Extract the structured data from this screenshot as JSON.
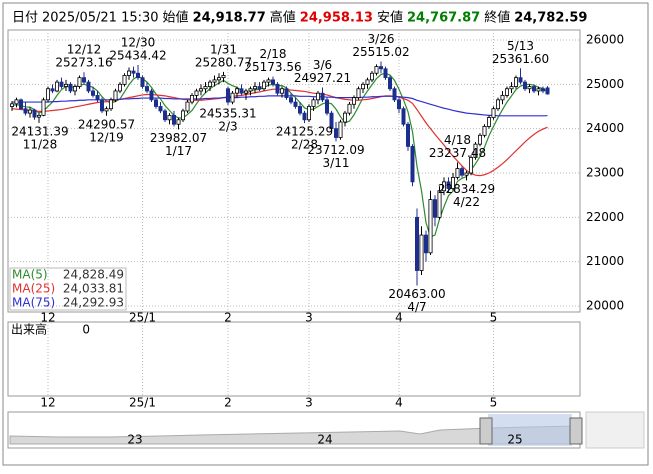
{
  "header": {
    "date_label": "日付",
    "datetime": "2025/05/21 15:30",
    "items": [
      {
        "label": "始値",
        "value": "24,918.77",
        "color": "#000000"
      },
      {
        "label": "高値",
        "value": "24,958.13",
        "color": "#e00000"
      },
      {
        "label": "安値",
        "value": "24,767.87",
        "color": "#008000"
      },
      {
        "label": "終値",
        "value": "24,782.59",
        "color": "#000000"
      }
    ]
  },
  "chart_data": {
    "type": "candlestick",
    "up_color": "#ffffff",
    "down_color": "#1c2f8c",
    "grid": true,
    "ylim": [
      19865,
      26225
    ],
    "yticks": [
      20000,
      21000,
      22000,
      23000,
      24000,
      25000,
      26000
    ],
    "categories": [
      null,
      null,
      null,
      null,
      null,
      null,
      null,
      null,
      "12",
      null,
      null,
      null,
      null,
      null,
      null,
      null,
      null,
      null,
      null,
      null,
      null,
      null,
      null,
      null,
      null,
      null,
      null,
      null,
      null,
      "25/1",
      null,
      null,
      null,
      null,
      null,
      null,
      null,
      null,
      null,
      null,
      null,
      null,
      null,
      null,
      null,
      null,
      null,
      null,
      "2",
      null,
      null,
      null,
      null,
      null,
      null,
      null,
      null,
      null,
      null,
      null,
      null,
      null,
      null,
      null,
      null,
      null,
      "3",
      null,
      null,
      null,
      null,
      null,
      null,
      null,
      null,
      null,
      null,
      null,
      null,
      null,
      null,
      null,
      null,
      null,
      null,
      null,
      "4",
      null,
      null,
      null,
      null,
      null,
      null,
      null,
      null,
      null,
      null,
      null,
      null,
      null,
      null,
      null,
      null,
      null,
      null,
      null,
      null,
      "5",
      null,
      null,
      null,
      null,
      null,
      null,
      null,
      null,
      null,
      null,
      null,
      null
    ],
    "ohlc": [
      [
        24500,
        24620,
        24400,
        24560
      ],
      [
        24560,
        24700,
        24480,
        24650
      ],
      [
        24650,
        24680,
        24420,
        24450
      ],
      [
        24450,
        24600,
        24300,
        24350
      ],
      [
        24350,
        24480,
        24250,
        24420
      ],
      [
        24420,
        24450,
        24200,
        24260
      ],
      [
        24260,
        24350,
        24131.39,
        24300
      ],
      [
        24300,
        24700,
        24280,
        24650
      ],
      [
        24650,
        24950,
        24600,
        24900
      ],
      [
        24900,
        25000,
        24800,
        24850
      ],
      [
        24850,
        25100,
        24820,
        25050
      ],
      [
        25050,
        25150,
        24900,
        24950
      ],
      [
        24950,
        25100,
        24850,
        25000
      ],
      [
        25000,
        25050,
        24800,
        24850
      ],
      [
        24850,
        25000,
        24750,
        24950
      ],
      [
        24950,
        25200,
        24900,
        25150
      ],
      [
        25150,
        25273.16,
        25000,
        25050
      ],
      [
        25050,
        25100,
        24800,
        24850
      ],
      [
        24850,
        24950,
        24700,
        24750
      ],
      [
        24750,
        24850,
        24600,
        24650
      ],
      [
        24650,
        24700,
        24350,
        24400
      ],
      [
        24400,
        24500,
        24290.57,
        24450
      ],
      [
        24450,
        24700,
        24400,
        24650
      ],
      [
        24650,
        24900,
        24600,
        24850
      ],
      [
        24850,
        25050,
        24800,
        25000
      ],
      [
        25000,
        25250,
        24950,
        25200
      ],
      [
        25200,
        25380,
        25100,
        25300
      ],
      [
        25300,
        25400,
        25150,
        25250
      ],
      [
        25250,
        25434.42,
        25100,
        25150
      ],
      [
        25150,
        25200,
        24900,
        24950
      ],
      [
        24950,
        25050,
        24800,
        24850
      ],
      [
        24850,
        24900,
        24600,
        24650
      ],
      [
        24650,
        24700,
        24450,
        24500
      ],
      [
        24500,
        24600,
        24350,
        24400
      ],
      [
        24400,
        24450,
        24150,
        24200
      ],
      [
        24200,
        24350,
        24100,
        24300
      ],
      [
        24300,
        24400,
        24050,
        24100
      ],
      [
        24100,
        24250,
        23982.07,
        24200
      ],
      [
        24200,
        24450,
        24150,
        24400
      ],
      [
        24400,
        24650,
        24350,
        24600
      ],
      [
        24600,
        24800,
        24550,
        24750
      ],
      [
        24750,
        24900,
        24650,
        24850
      ],
      [
        24850,
        25000,
        24750,
        24900
      ],
      [
        24900,
        25050,
        24800,
        24950
      ],
      [
        24950,
        25100,
        24850,
        25050
      ],
      [
        25050,
        25200,
        24950,
        25100
      ],
      [
        25100,
        25250,
        25000,
        25150
      ],
      [
        25150,
        25280.77,
        25050,
        25200
      ],
      [
        24900,
        24950,
        24535.31,
        24600
      ],
      [
        24600,
        24850,
        24550,
        24800
      ],
      [
        24800,
        24950,
        24700,
        24900
      ],
      [
        24900,
        25000,
        24750,
        24800
      ],
      [
        24800,
        24900,
        24650,
        24850
      ],
      [
        24850,
        24950,
        24750,
        24900
      ],
      [
        24900,
        25050,
        24800,
        24950
      ],
      [
        24950,
        25050,
        24850,
        24900
      ],
      [
        24900,
        25100,
        24850,
        25050
      ],
      [
        25050,
        25150,
        24950,
        25100
      ],
      [
        25100,
        25173.56,
        24950,
        25000
      ],
      [
        25000,
        25050,
        24750,
        24800
      ],
      [
        24800,
        24950,
        24700,
        24900
      ],
      [
        24900,
        24950,
        24650,
        24700
      ],
      [
        24700,
        24800,
        24550,
        24600
      ],
      [
        24600,
        24700,
        24450,
        24500
      ],
      [
        24500,
        24600,
        24300,
        24350
      ],
      [
        24350,
        24400,
        24125.29,
        24200
      ],
      [
        24200,
        24550,
        24150,
        24500
      ],
      [
        24500,
        24700,
        24400,
        24650
      ],
      [
        24650,
        24850,
        24550,
        24800
      ],
      [
        24800,
        24927.21,
        24600,
        24650
      ],
      [
        24650,
        24700,
        24300,
        24350
      ],
      [
        24350,
        24400,
        23900,
        24000
      ],
      [
        24000,
        24150,
        23712.09,
        23800
      ],
      [
        23800,
        24200,
        23750,
        24150
      ],
      [
        24150,
        24400,
        24050,
        24350
      ],
      [
        24350,
        24600,
        24300,
        24550
      ],
      [
        24550,
        24750,
        24450,
        24700
      ],
      [
        24700,
        24950,
        24650,
        24900
      ],
      [
        24900,
        25050,
        24800,
        25000
      ],
      [
        25000,
        25150,
        24900,
        25100
      ],
      [
        25100,
        25300,
        25050,
        25250
      ],
      [
        25250,
        25450,
        25200,
        25400
      ],
      [
        25400,
        25515.02,
        25250,
        25350
      ],
      [
        25350,
        25400,
        25100,
        25150
      ],
      [
        25150,
        25200,
        24850,
        24900
      ],
      [
        24900,
        24950,
        24600,
        24650
      ],
      [
        24650,
        24700,
        24350,
        24450
      ],
      [
        24450,
        24500,
        24050,
        24100
      ],
      [
        24100,
        24150,
        23500,
        23600
      ],
      [
        23600,
        23650,
        22700,
        22800
      ],
      [
        22000,
        22200,
        20463,
        20800
      ],
      [
        20800,
        21800,
        20700,
        21600
      ],
      [
        21600,
        21700,
        21000,
        21200
      ],
      [
        21200,
        22600,
        21150,
        22400
      ],
      [
        22400,
        22500,
        21800,
        22000
      ],
      [
        22000,
        22700,
        21950,
        22600
      ],
      [
        22600,
        22900,
        22500,
        22800
      ],
      [
        22800,
        22900,
        22550,
        22650
      ],
      [
        22650,
        23000,
        22600,
        22900
      ],
      [
        22900,
        23237.48,
        22850,
        23100
      ],
      [
        23100,
        23150,
        22900,
        22950
      ],
      [
        22950,
        23050,
        22834.29,
        23000
      ],
      [
        23000,
        23400,
        22950,
        23350
      ],
      [
        23350,
        23700,
        23300,
        23650
      ],
      [
        23650,
        23900,
        23600,
        23850
      ],
      [
        23850,
        24100,
        23800,
        24050
      ],
      [
        24050,
        24300,
        24000,
        24250
      ],
      [
        24250,
        24500,
        24200,
        24450
      ],
      [
        24450,
        24700,
        24400,
        24650
      ],
      [
        24650,
        24850,
        24550,
        24750
      ],
      [
        24750,
        24950,
        24700,
        24900
      ],
      [
        24900,
        25050,
        24800,
        24950
      ],
      [
        24950,
        25200,
        24900,
        25150
      ],
      [
        25150,
        25361.6,
        25000,
        25050
      ],
      [
        25050,
        25100,
        24850,
        24900
      ],
      [
        24900,
        25000,
        24800,
        24950
      ],
      [
        24950,
        25000,
        24800,
        24850
      ],
      [
        24850,
        24950,
        24750,
        24900
      ],
      [
        24900,
        24950,
        24800,
        24850
      ],
      [
        24918.77,
        24958.13,
        24767.87,
        24782.59
      ]
    ],
    "series": [
      {
        "name": "MA(5)",
        "color": "#2e8b2e",
        "legend_value": "24,828.49",
        "values": [
          24520,
          24540,
          24520,
          24490,
          24486,
          24426,
          24356,
          24396,
          24502,
          24600,
          24750,
          24880,
          24950,
          24940,
          24940,
          24980,
          25000,
          24970,
          24930,
          24850,
          24720,
          24620,
          24580,
          24610,
          24670,
          24830,
          24990,
          25120,
          25180,
          25130,
          25050,
          24930,
          24780,
          24670,
          24520,
          24410,
          24300,
          24240,
          24240,
          24320,
          24410,
          24560,
          24700,
          24810,
          24900,
          24970,
          25030,
          25090,
          25020,
          24970,
          24930,
          24860,
          24790,
          24850,
          24880,
          24880,
          24930,
          24980,
          25000,
          24970,
          24970,
          24920,
          24800,
          24700,
          24590,
          24470,
          24430,
          24440,
          24500,
          24560,
          24590,
          24560,
          24440,
          24270,
          24130,
          24170,
          24310,
          24500,
          24700,
          24850,
          24990,
          25130,
          25220,
          25250,
          25210,
          25090,
          24890,
          24650,
          24380,
          23930,
          23150,
          22600,
          21880,
          21560,
          21600,
          21960,
          22240,
          22490,
          22590,
          22810,
          22880,
          22920,
          23060,
          23210,
          23370,
          23580,
          23840,
          24050,
          24250,
          24430,
          24600,
          24740,
          24880,
          24960,
          24990,
          25000,
          24980,
          24930,
          24910,
          24828.49
        ]
      },
      {
        "name": "MA(25)",
        "color": "#e03030",
        "legend_value": "24,033.81",
        "values": [
          24450,
          24440,
          24430,
          24420,
          24410,
          24400,
          24390,
          24390,
          24400,
          24410,
          24420,
          24430,
          24450,
          24470,
          24490,
          24510,
          24530,
          24550,
          24570,
          24590,
          24600,
          24610,
          24620,
          24640,
          24660,
          24680,
          24700,
          24720,
          24740,
          24760,
          24770,
          24770,
          24760,
          24750,
          24740,
          24720,
          24700,
          24680,
          24660,
          24650,
          24640,
          24640,
          24640,
          24650,
          24660,
          24670,
          24680,
          24700,
          24720,
          24730,
          24740,
          24750,
          24770,
          24790,
          24810,
          24830,
          24850,
          24870,
          24890,
          24890,
          24890,
          24880,
          24870,
          24860,
          24850,
          24840,
          24820,
          24800,
          24790,
          24780,
          24760,
          24730,
          24700,
          24680,
          24660,
          24650,
          24640,
          24640,
          24650,
          24660,
          24680,
          24700,
          24720,
          24740,
          24740,
          24730,
          24710,
          24680,
          24640,
          24570,
          24430,
          24280,
          24130,
          24000,
          23870,
          23750,
          23630,
          23500,
          23380,
          23270,
          23160,
          23060,
          22990,
          22950,
          22940,
          22960,
          23000,
          23060,
          23130,
          23210,
          23300,
          23400,
          23500,
          23600,
          23700,
          23790,
          23870,
          23940,
          23990,
          24033.81
        ]
      },
      {
        "name": "MA(75)",
        "color": "#3030d0",
        "legend_value": "24,292.93",
        "values": [
          24600,
          24600,
          24600,
          24600,
          24600,
          24600,
          24600,
          24600,
          24600,
          24610,
          24610,
          24620,
          24620,
          24630,
          24630,
          24640,
          24640,
          24650,
          24650,
          24650,
          24650,
          24650,
          24650,
          24660,
          24660,
          24670,
          24670,
          24680,
          24680,
          24690,
          24690,
          24690,
          24690,
          24690,
          24680,
          24680,
          24670,
          24670,
          24670,
          24670,
          24670,
          24670,
          24670,
          24680,
          24680,
          24690,
          24690,
          24700,
          24700,
          24700,
          24700,
          24710,
          24710,
          24720,
          24720,
          24730,
          24730,
          24740,
          24740,
          24740,
          24740,
          24740,
          24740,
          24740,
          24730,
          24730,
          24730,
          24720,
          24720,
          24720,
          24710,
          24710,
          24700,
          24700,
          24700,
          24700,
          24700,
          24700,
          24710,
          24710,
          24720,
          24720,
          24730,
          24730,
          24730,
          24730,
          24720,
          24710,
          24700,
          24680,
          24640,
          24610,
          24580,
          24550,
          24520,
          24490,
          24460,
          24440,
          24410,
          24390,
          24370,
          24350,
          24340,
          24330,
          24320,
          24310,
          24300,
          24300,
          24290,
          24290,
          24290,
          24290,
          24290,
          24290,
          24290,
          24290,
          24290,
          24290,
          24290,
          24292.93
        ]
      }
    ],
    "annotations": [
      {
        "value": 25273.16,
        "date": "12/12"
      },
      {
        "value": 25434.42,
        "date": "12/30"
      },
      {
        "value": 25280.77,
        "date": "1/31"
      },
      {
        "value": 25173.56,
        "date": "2/18"
      },
      {
        "value": 24927.21,
        "date": "3/6"
      },
      {
        "value": 25515.02,
        "date": "3/26"
      },
      {
        "value": 23237.48,
        "date": "4/18"
      },
      {
        "value": 25361.6,
        "label": "25361.60",
        "date": "5/13"
      },
      {
        "value": 24131.39,
        "date": "11/28"
      },
      {
        "value": 24290.57,
        "date": "12/19"
      },
      {
        "value": 23982.07,
        "date": "1/17"
      },
      {
        "value": 24535.31,
        "date": "2/3"
      },
      {
        "value": 24125.29,
        "date": "2/28"
      },
      {
        "value": 23712.09,
        "date": "3/11"
      },
      {
        "value": 20463,
        "label": "20463.00",
        "date": "4/7"
      },
      {
        "value": 22834.29,
        "date": "4/22"
      }
    ],
    "volume": {
      "label": "出来高",
      "yticks": [
        0
      ]
    }
  },
  "navigator": {
    "labels": [
      "23",
      "24",
      "25"
    ]
  }
}
